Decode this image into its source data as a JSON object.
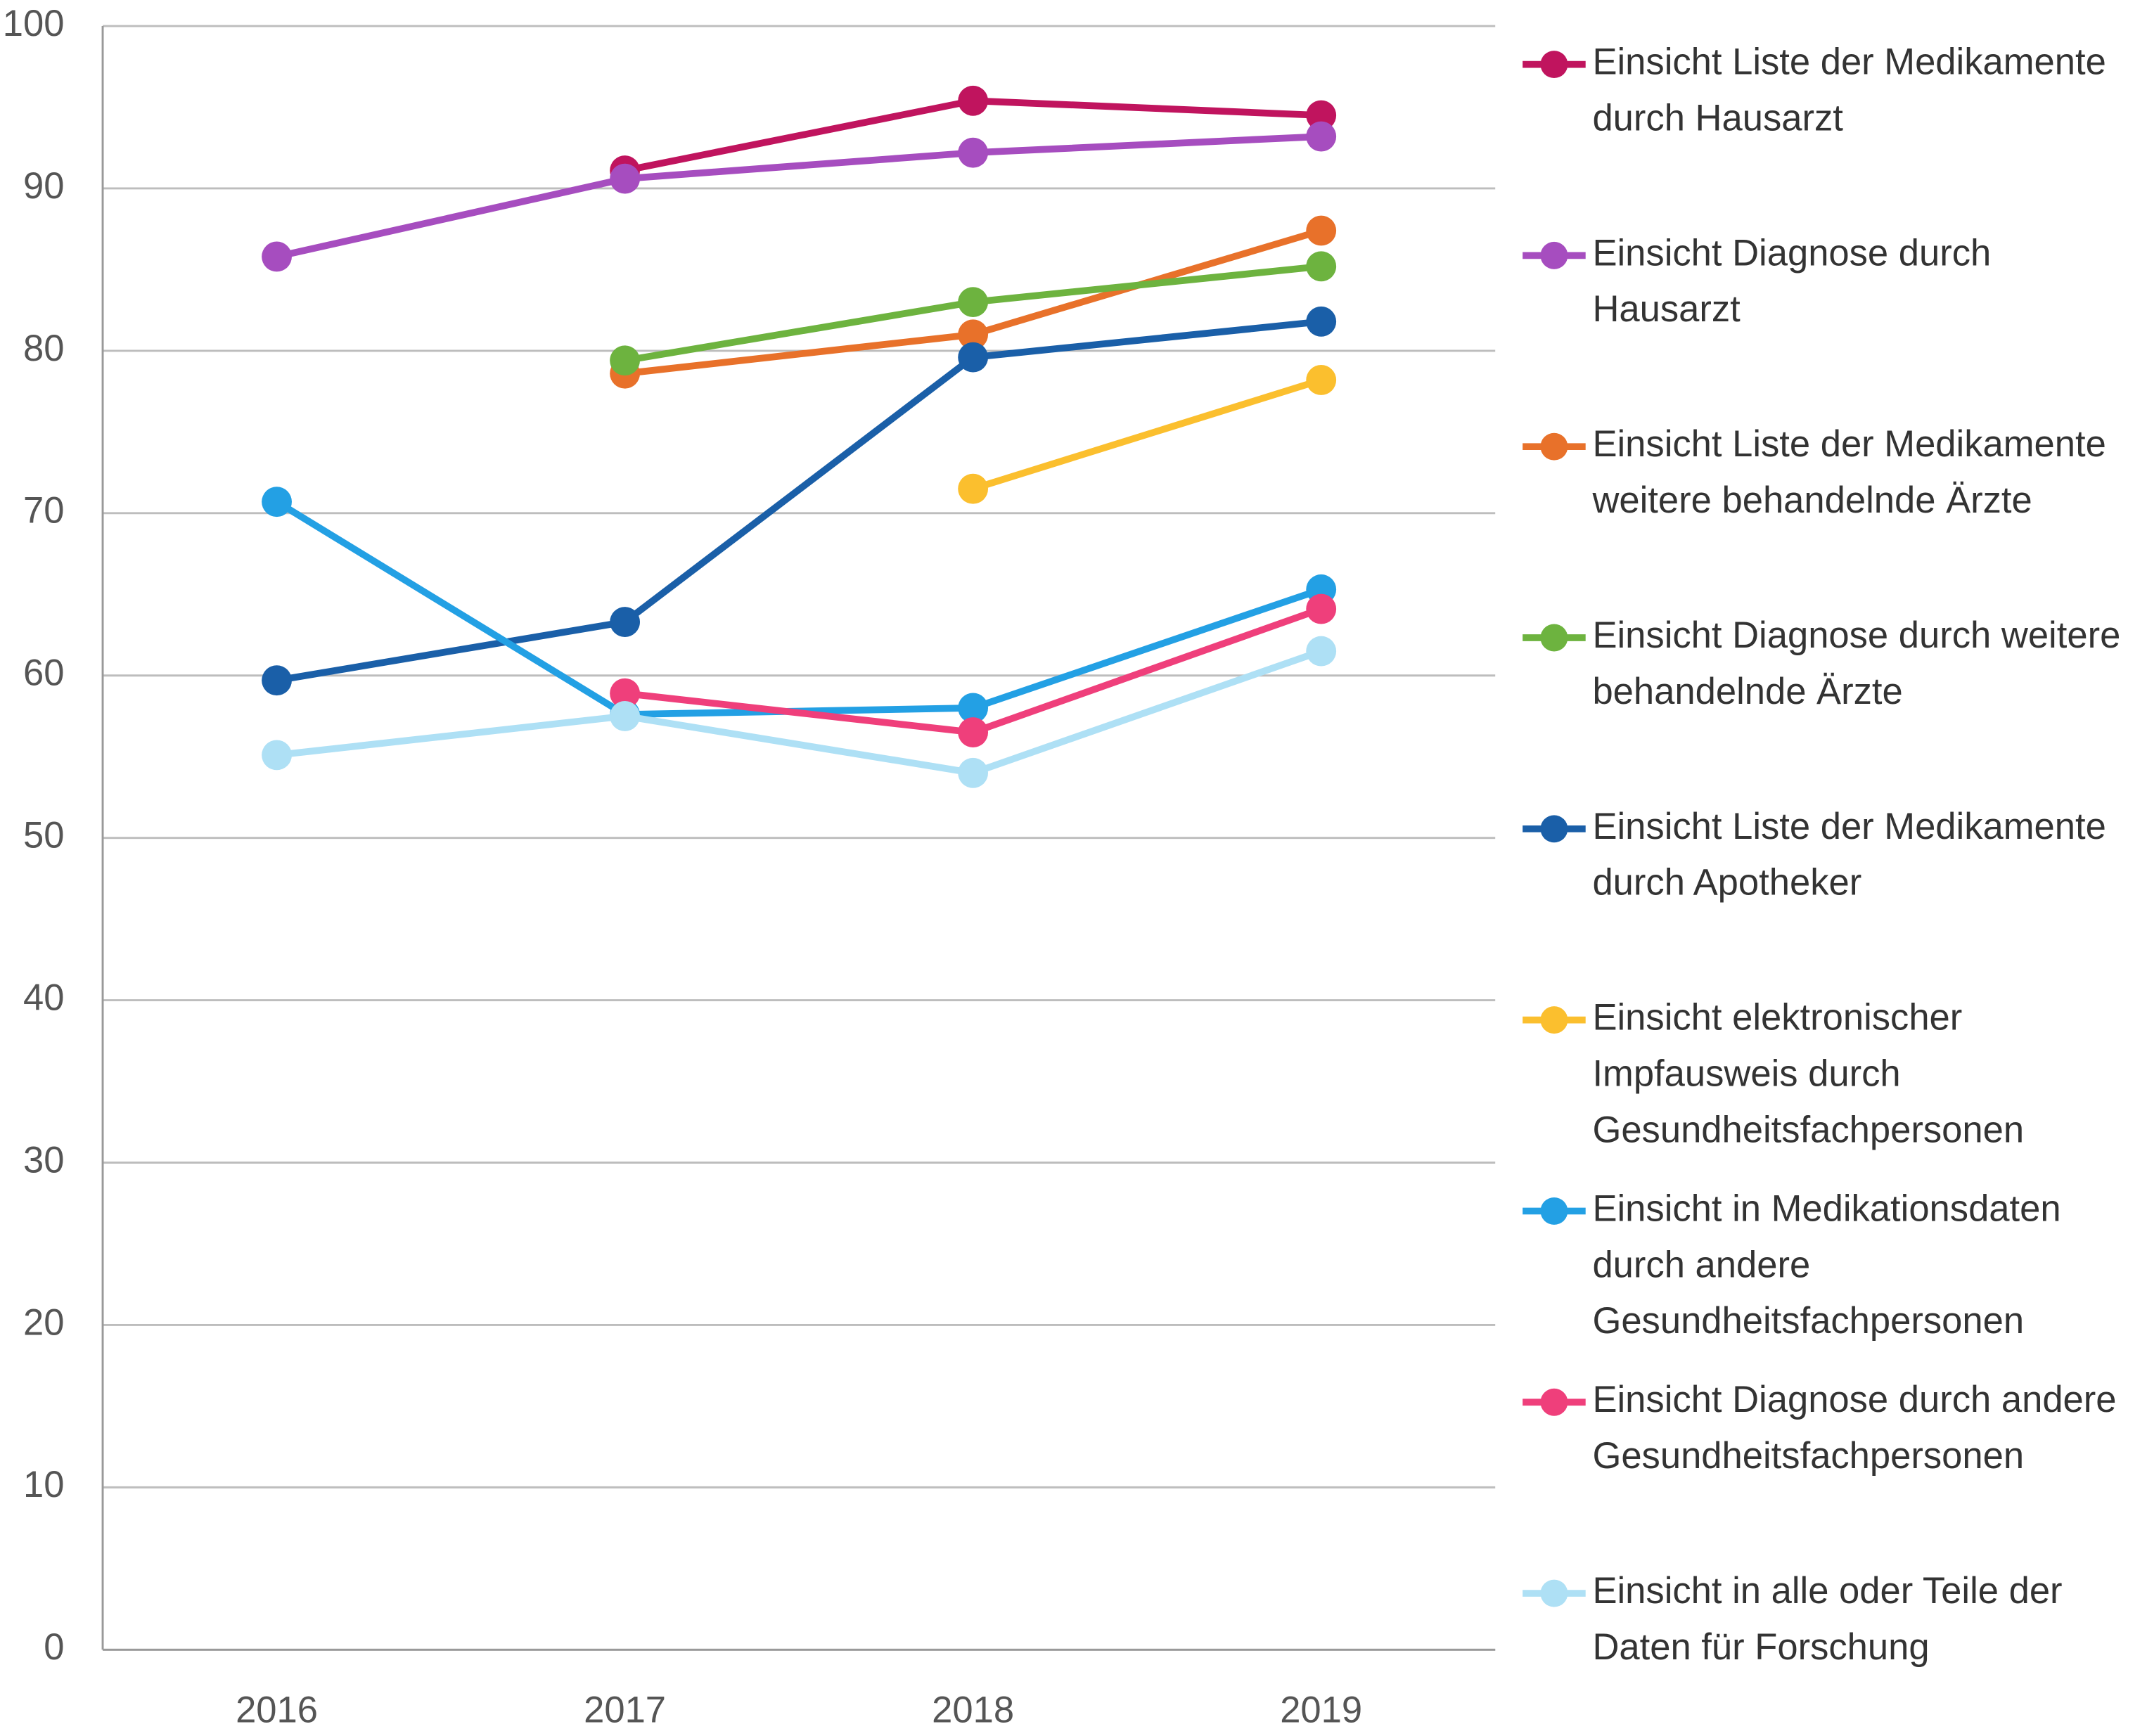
{
  "chart_data": {
    "type": "line",
    "categories": [
      "2016",
      "2017",
      "2018",
      "2019"
    ],
    "ylim": [
      0,
      100
    ],
    "yticks": [
      0,
      10,
      20,
      30,
      40,
      50,
      60,
      70,
      80,
      90,
      100
    ],
    "grid": true,
    "legend": "right",
    "series": [
      {
        "name": "Einsicht Liste der Medikamente durch Hausarzt",
        "color": "#c0145e",
        "values": [
          null,
          91.1,
          95.4,
          94.5
        ]
      },
      {
        "name": "Einsicht Diagnose durch Hausarzt",
        "color": "#a64dbf",
        "values": [
          85.8,
          90.6,
          92.2,
          93.2
        ]
      },
      {
        "name": "Einsicht Liste der Medikamente weitere behandelnde Ärzte",
        "color": "#e8712a",
        "values": [
          null,
          78.6,
          81.0,
          87.4
        ]
      },
      {
        "name": "Einsicht Diagnose durch weitere behandelnde Ärzte",
        "color": "#6db33f",
        "values": [
          null,
          79.4,
          83.0,
          85.2
        ]
      },
      {
        "name": "Einsicht Liste der Medikamente durch Apotheker",
        "color": "#1a5fa8",
        "values": [
          59.7,
          63.3,
          79.6,
          81.8
        ]
      },
      {
        "name": "Einsicht elektronischer Impfausweis durch Gesundheitsfachpersonen",
        "color": "#fbbf2e",
        "values": [
          null,
          null,
          71.5,
          78.2
        ]
      },
      {
        "name": "Einsicht in Medikationsdaten durch andere Gesundheitsfachpersonen",
        "color": "#23a0e4",
        "values": [
          70.7,
          57.6,
          58.0,
          65.3
        ]
      },
      {
        "name": "Einsicht Diagnose durch andere Gesundheitsfachpersonen",
        "color": "#ef3f7b",
        "values": [
          null,
          58.9,
          56.5,
          64.1
        ]
      },
      {
        "name": "Einsicht in alle oder Teile der Daten für Forschung",
        "color": "#aee0f5",
        "values": [
          55.1,
          57.5,
          54.0,
          61.5
        ]
      }
    ]
  }
}
